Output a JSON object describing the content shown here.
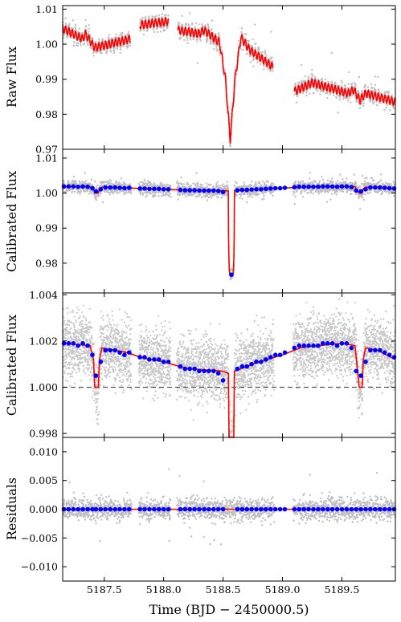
{
  "chart_data": [
    {
      "type": "scatter",
      "ylabel": "Raw Flux",
      "ylim": [
        0.97,
        1.011
      ],
      "yticks": [
        0.97,
        0.98,
        0.99,
        1.0,
        1.01
      ],
      "ytick_labels": [
        "0.97",
        "0.98",
        "0.99",
        "1.00",
        "1.01"
      ],
      "segments": [
        {
          "x": [
            5187.15,
            5187.32,
            5187.34,
            5187.42,
            5187.72
          ],
          "y": [
            1.0045,
            1.0015,
            1.003,
            0.999,
            1.0015
          ]
        },
        {
          "x": [
            5187.8,
            5188.04
          ],
          "y": [
            1.0055,
            1.0065
          ]
        },
        {
          "x": [
            5188.12,
            5188.3,
            5188.34,
            5188.47,
            5188.52,
            5188.56,
            5188.6,
            5188.65,
            5188.72,
            5188.92
          ],
          "y": [
            1.004,
            1.003,
            1.004,
            1.0005,
            0.99,
            0.9725,
            0.99,
            1.002,
            0.9985,
            0.9935
          ]
        },
        {
          "x": [
            5189.1,
            5189.25,
            5189.55,
            5189.6,
            5189.65,
            5189.7,
            5189.95
          ],
          "y": [
            0.9865,
            0.989,
            0.986,
            0.987,
            0.984,
            0.986,
            0.9835
          ]
        }
      ]
    },
    {
      "type": "scatter",
      "ylabel": "Calibrated Flux",
      "ylim": [
        0.9715,
        1.0125
      ],
      "yticks": [
        0.98,
        0.99,
        1.0,
        1.01
      ],
      "ytick_labels": [
        "0.98",
        "0.99",
        "1.00",
        "1.01"
      ]
    },
    {
      "type": "scatter",
      "ylabel": "Calibrated Flux",
      "ylim": [
        0.99783,
        1.00408
      ],
      "yticks": [
        0.998,
        1.0,
        1.002,
        1.004
      ],
      "ytick_labels": [
        "0.998",
        "1.000",
        "1.002",
        "1.004"
      ],
      "hline": 1.0,
      "model": {
        "x": [
          5187.15,
          5187.38,
          5187.41,
          5187.42,
          5187.45,
          5187.46,
          5187.48,
          5187.7,
          5187.8,
          5188.0,
          5188.2,
          5188.49,
          5188.545,
          5188.55,
          5188.59,
          5188.595,
          5188.65,
          5188.8,
          5189.0,
          5189.15,
          5189.3,
          5189.5,
          5189.61,
          5189.63,
          5189.645,
          5189.67,
          5189.68,
          5189.7,
          5189.8,
          5189.95
        ],
        "y": [
          1.0019,
          1.0018,
          1.0012,
          1.0,
          1.0,
          1.0012,
          1.0017,
          1.0015,
          1.0013,
          1.0011,
          1.0008,
          1.0007,
          1.0006,
          0.9978,
          0.9978,
          1.0007,
          1.0008,
          1.0011,
          1.0014,
          1.0017,
          1.0018,
          1.0019,
          1.0018,
          1.0008,
          1.0,
          1.0,
          1.0012,
          1.0017,
          1.0016,
          1.0012
        ]
      },
      "binned": {
        "x": [
          5187.16,
          5187.2,
          5187.24,
          5187.28,
          5187.32,
          5187.36,
          5187.4,
          5187.43,
          5187.47,
          5187.51,
          5187.55,
          5187.59,
          5187.63,
          5187.67,
          5187.71,
          5187.8,
          5187.84,
          5187.88,
          5187.92,
          5187.96,
          5188.0,
          5188.04,
          5188.14,
          5188.18,
          5188.22,
          5188.26,
          5188.3,
          5188.34,
          5188.38,
          5188.42,
          5188.46,
          5188.5,
          5188.62,
          5188.66,
          5188.7,
          5188.74,
          5188.78,
          5188.82,
          5188.86,
          5188.9,
          5188.94,
          5188.98,
          5189.02,
          5189.1,
          5189.14,
          5189.18,
          5189.22,
          5189.26,
          5189.3,
          5189.34,
          5189.38,
          5189.42,
          5189.46,
          5189.5,
          5189.54,
          5189.58,
          5189.62,
          5189.66,
          5189.7,
          5189.74,
          5189.78,
          5189.82,
          5189.86,
          5189.9,
          5189.94
        ],
        "y": [
          1.0019,
          1.0019,
          1.0019,
          1.0018,
          1.0019,
          1.0018,
          1.0014,
          1.0005,
          1.0011,
          1.0016,
          1.0016,
          1.0016,
          1.0015,
          1.0014,
          1.0015,
          1.0013,
          1.0013,
          1.0012,
          1.0012,
          1.0012,
          1.0011,
          1.0011,
          1.0009,
          1.0008,
          1.0008,
          1.0008,
          1.0007,
          1.0007,
          1.0007,
          1.0007,
          1.0006,
          1.0003,
          1.0008,
          1.0009,
          1.0009,
          1.001,
          1.0011,
          1.0011,
          1.0012,
          1.0013,
          1.0014,
          1.0014,
          1.0015,
          1.0017,
          1.0018,
          1.0018,
          1.0018,
          1.0018,
          1.0018,
          1.0019,
          1.0019,
          1.0019,
          1.0018,
          1.0019,
          1.0019,
          1.0017,
          1.0007,
          1.0005,
          1.0011,
          1.0016,
          1.0016,
          1.0016,
          1.0015,
          1.0014,
          1.0013
        ]
      }
    },
    {
      "type": "scatter",
      "ylabel": "Residuals",
      "xlabel": "Time (BJD − 2450000.5)",
      "ylim": [
        -0.0125,
        0.0125
      ],
      "yticks": [
        -0.01,
        -0.005,
        0.0,
        0.005,
        0.01
      ],
      "ytick_labels": [
        "−0.010",
        "−0.005",
        "0.000",
        "0.005",
        "0.010"
      ],
      "xlim": [
        5187.15,
        5189.95
      ],
      "xticks": [
        5187.5,
        5188.0,
        5188.5,
        5189.0,
        5189.5
      ],
      "xtick_labels": [
        "5187.5",
        "5188.0",
        "5188.5",
        "5189.0",
        "5189.5"
      ]
    }
  ],
  "colors": {
    "points": "#000000",
    "model": "#ff0000",
    "binned": "#0000ff",
    "dashed": "#555555"
  }
}
